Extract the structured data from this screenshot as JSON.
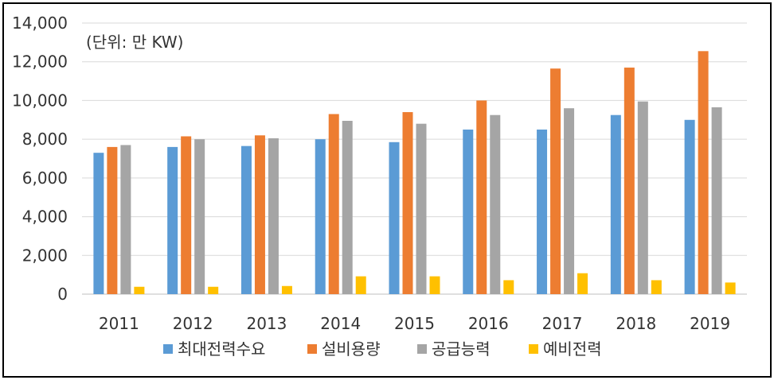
{
  "chart_data": {
    "type": "bar",
    "unit_note": "(단위: 만 KW)",
    "categories": [
      "2011",
      "2012",
      "2013",
      "2014",
      "2015",
      "2016",
      "2017",
      "2018",
      "2019"
    ],
    "series": [
      {
        "name": "최대전력수요",
        "color": "#5b9bd5",
        "values": [
          7300,
          7600,
          7650,
          8000,
          7850,
          8500,
          8500,
          9250,
          9000
        ]
      },
      {
        "name": "설비용량",
        "color": "#ed7d31",
        "values": [
          7600,
          8150,
          8200,
          9300,
          9400,
          10000,
          11650,
          11700,
          12550
        ]
      },
      {
        "name": "공급능력",
        "color": "#a5a5a5",
        "values": [
          7700,
          8000,
          8050,
          8950,
          8800,
          9250,
          9600,
          9950,
          9650
        ]
      },
      {
        "name": "예비전력",
        "color": "#ffc000",
        "values": [
          380,
          380,
          420,
          920,
          920,
          720,
          1080,
          720,
          600
        ]
      }
    ],
    "yticks": [
      "0",
      "2,000",
      "4,000",
      "6,000",
      "8,000",
      "10,000",
      "12,000",
      "14,000"
    ],
    "ylim": [
      0,
      14000
    ],
    "grid": true,
    "legend_position": "bottom",
    "title": "",
    "xlabel": "",
    "ylabel": ""
  }
}
